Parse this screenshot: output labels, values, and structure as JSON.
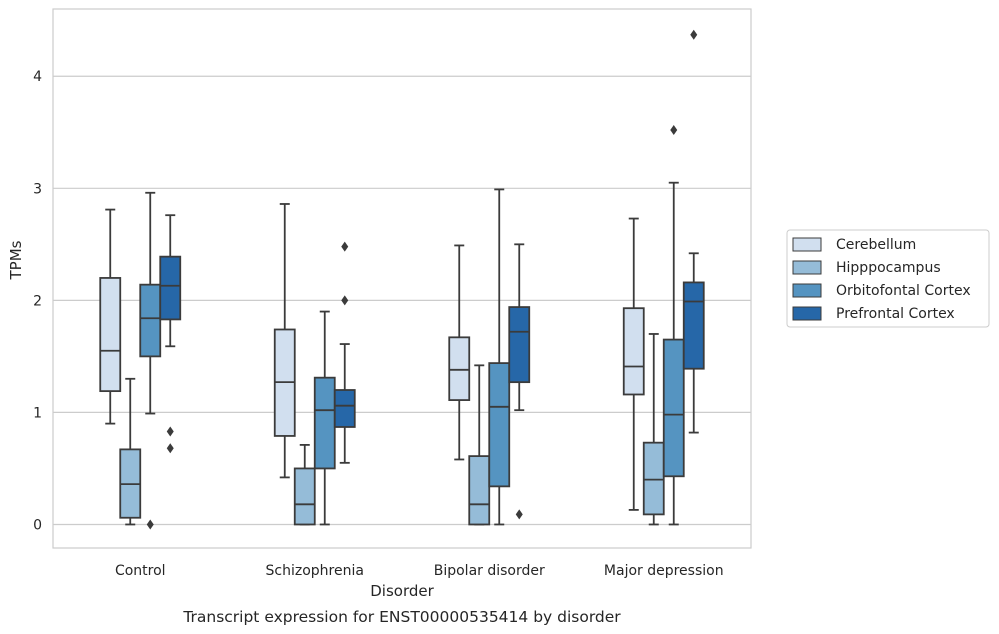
{
  "chart_data": {
    "type": "box",
    "caption": "Transcript expression for ENST00000535414 by disorder",
    "xlabel": "Disorder",
    "ylabel": "TPMs",
    "ylim": [
      -0.21,
      4.6
    ],
    "yticks": [
      0,
      1,
      2,
      3,
      4
    ],
    "grid": "horizontal",
    "legend_placement": "right",
    "categories": [
      "Control",
      "Schizophrenia",
      "Bipolar disorder",
      "Major depression"
    ],
    "series": [
      {
        "name": "Cerebellum",
        "color": "#d1dfef",
        "boxes": [
          {
            "whislo": 0.9,
            "q1": 1.19,
            "med": 1.55,
            "q3": 2.2,
            "whishi": 2.81,
            "fliers": []
          },
          {
            "whislo": 0.42,
            "q1": 0.79,
            "med": 1.27,
            "q3": 1.74,
            "whishi": 2.86,
            "fliers": []
          },
          {
            "whislo": 0.58,
            "q1": 1.11,
            "med": 1.38,
            "q3": 1.67,
            "whishi": 2.49,
            "fliers": []
          },
          {
            "whislo": 0.13,
            "q1": 1.16,
            "med": 1.41,
            "q3": 1.93,
            "whishi": 2.73,
            "fliers": []
          }
        ]
      },
      {
        "name": "Hipppocampus",
        "color": "#95bcd8",
        "boxes": [
          {
            "whislo": 0.0,
            "q1": 0.06,
            "med": 0.36,
            "q3": 0.67,
            "whishi": 1.3,
            "fliers": []
          },
          {
            "whislo": 0.0,
            "q1": 0.0,
            "med": 0.18,
            "q3": 0.5,
            "whishi": 0.71,
            "fliers": []
          },
          {
            "whislo": 0.0,
            "q1": 0.0,
            "med": 0.18,
            "q3": 0.61,
            "whishi": 1.42,
            "fliers": []
          },
          {
            "whislo": 0.0,
            "q1": 0.09,
            "med": 0.4,
            "q3": 0.73,
            "whishi": 1.7,
            "fliers": []
          }
        ]
      },
      {
        "name": "Orbitofontal Cortex",
        "color": "#5594c1",
        "boxes": [
          {
            "whislo": 0.99,
            "q1": 1.5,
            "med": 1.84,
            "q3": 2.14,
            "whishi": 2.96,
            "fliers": [
              0.0
            ]
          },
          {
            "whislo": 0.0,
            "q1": 0.5,
            "med": 1.02,
            "q3": 1.31,
            "whishi": 1.9,
            "fliers": []
          },
          {
            "whislo": 0.0,
            "q1": 0.34,
            "med": 1.05,
            "q3": 1.44,
            "whishi": 2.99,
            "fliers": []
          },
          {
            "whislo": 0.0,
            "q1": 0.43,
            "med": 0.98,
            "q3": 1.65,
            "whishi": 3.05,
            "fliers": [
              3.52
            ]
          }
        ]
      },
      {
        "name": "Prefrontal Cortex",
        "color": "#2667a8",
        "boxes": [
          {
            "whislo": 1.59,
            "q1": 1.83,
            "med": 2.13,
            "q3": 2.39,
            "whishi": 2.76,
            "fliers": [
              0.83,
              0.68
            ]
          },
          {
            "whislo": 0.55,
            "q1": 0.87,
            "med": 1.06,
            "q3": 1.2,
            "whishi": 1.61,
            "fliers": [
              2.48,
              2.0
            ]
          },
          {
            "whislo": 1.02,
            "q1": 1.27,
            "med": 1.72,
            "q3": 1.94,
            "whishi": 2.5,
            "fliers": [
              0.09
            ]
          },
          {
            "whislo": 0.82,
            "q1": 1.39,
            "med": 1.99,
            "q3": 2.16,
            "whishi": 2.42,
            "fliers": [
              4.37
            ]
          }
        ]
      }
    ]
  }
}
